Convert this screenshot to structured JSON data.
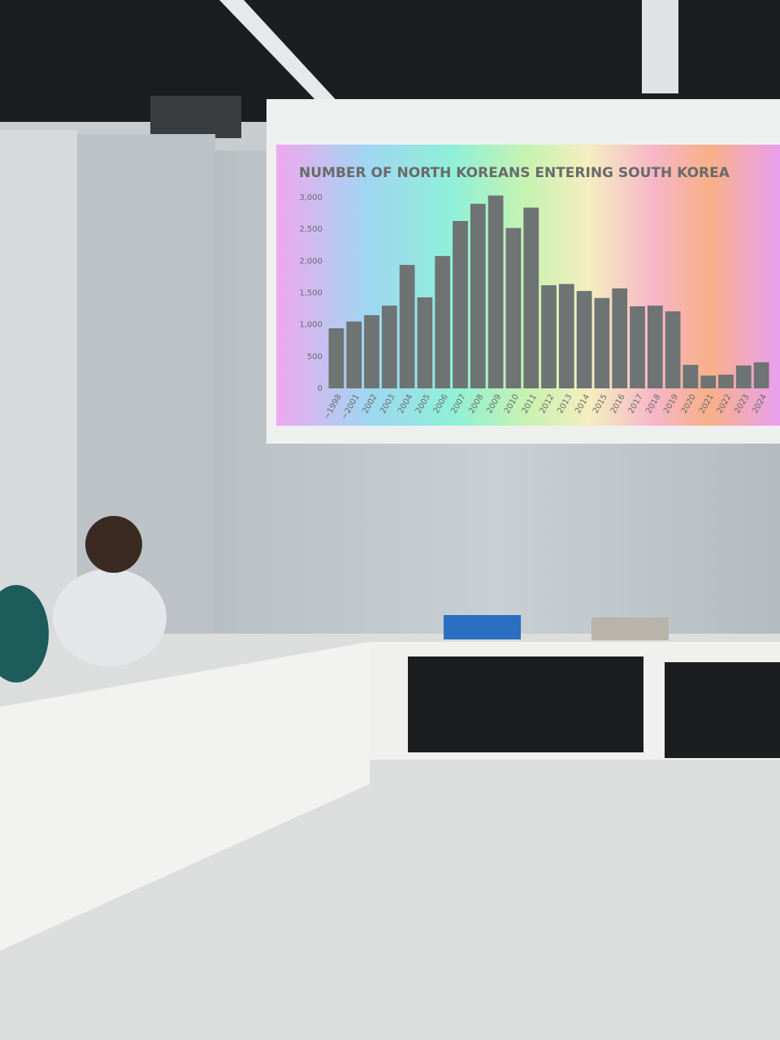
{
  "chart_data": {
    "type": "bar",
    "title": "NUMBER OF NORTH KOREANS ENTERING SOUTH KOREA",
    "categories": [
      "~1998",
      "~2001",
      "2002",
      "2003",
      "2004",
      "2005",
      "2006",
      "2007",
      "2008",
      "2009",
      "2010",
      "2011",
      "2012",
      "2013",
      "2014",
      "2015",
      "2016",
      "2017",
      "2018",
      "2019",
      "2020",
      "2021",
      "2022",
      "2023",
      "2024"
    ],
    "values": [
      945,
      1050,
      1150,
      1300,
      1940,
      1430,
      2080,
      2630,
      2900,
      3030,
      2520,
      2840,
      1620,
      1640,
      1530,
      1420,
      1570,
      1290,
      1300,
      1210,
      370,
      200,
      215,
      360,
      410
    ],
    "color": "#6e7373",
    "ylim": [
      0,
      3000
    ],
    "yticks": [
      0,
      500,
      {
        "value": 1000,
        "label": "1,000"
      },
      {
        "value": 1500,
        "label": "1,500"
      },
      {
        "value": 2000,
        "label": "2,000"
      },
      {
        "value": 2500,
        "label": "2,500"
      },
      {
        "value": 3000,
        "label": "3,000"
      }
    ]
  }
}
